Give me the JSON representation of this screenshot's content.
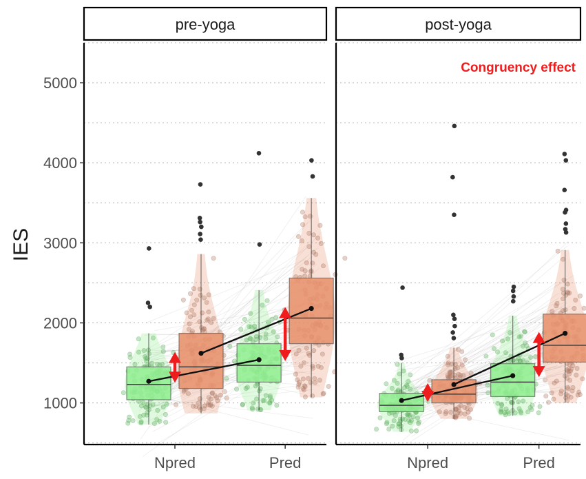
{
  "chart_data": {
    "type": "box",
    "ylabel": "IES",
    "xlabel": "",
    "ylim": [
      480,
      5500
    ],
    "yticks": [
      1000,
      2000,
      3000,
      4000,
      5000
    ],
    "grid": "dotted-horizontal",
    "categories": [
      "Npred",
      "Pred"
    ],
    "conditions": [
      "congruent",
      "incongruent"
    ],
    "colors": {
      "congruent": "#90ee90",
      "congruent_points": "#5fae5f",
      "incongruent": "#e8916b",
      "incongruent_points": "#b07a68",
      "outlier": "#333333",
      "mean_line": "#111111",
      "effect_arrow": "#ee1c1c"
    },
    "annotation": "Congruency effect",
    "panels": [
      {
        "name": "pre-yoga",
        "boxes": [
          {
            "category": "Npred",
            "condition": "congruent",
            "min": 730,
            "q1": 1040,
            "median": 1230,
            "q3": 1450,
            "max": 1870,
            "mean": 1270,
            "outliers": [
              2930,
              2250,
              2200
            ]
          },
          {
            "category": "Npred",
            "condition": "incongruent",
            "min": 870,
            "q1": 1180,
            "median": 1450,
            "q3": 1870,
            "max": 2860,
            "mean": 1620,
            "outliers": [
              3730,
              3310,
              3260,
              3200,
              3110,
              3040
            ]
          },
          {
            "category": "Pred",
            "condition": "congruent",
            "min": 910,
            "q1": 1260,
            "median": 1470,
            "q3": 1740,
            "max": 2410,
            "mean": 1540,
            "outliers": [
              4120,
              2980
            ]
          },
          {
            "category": "Pred",
            "condition": "incongruent",
            "min": 1070,
            "q1": 1740,
            "median": 2060,
            "q3": 2560,
            "max": 3560,
            "mean": 2180,
            "outliers": [
              4030,
              3830
            ]
          }
        ]
      },
      {
        "name": "post-yoga",
        "boxes": [
          {
            "category": "Npred",
            "condition": "congruent",
            "min": 640,
            "q1": 890,
            "median": 970,
            "q3": 1120,
            "max": 1500,
            "mean": 1030,
            "outliers": [
              2440,
              1600,
              1560
            ]
          },
          {
            "category": "Npred",
            "condition": "incongruent",
            "min": 800,
            "q1": 1000,
            "median": 1110,
            "q3": 1290,
            "max": 1690,
            "mean": 1230,
            "outliers": [
              4460,
              3820,
              3350,
              2100,
              2050,
              1960,
              1880,
              1810
            ]
          },
          {
            "category": "Pred",
            "condition": "congruent",
            "min": 840,
            "q1": 1080,
            "median": 1260,
            "q3": 1490,
            "max": 2090,
            "mean": 1340,
            "outliers": [
              2450,
              2400,
              2330,
              2270
            ]
          },
          {
            "category": "Pred",
            "condition": "incongruent",
            "min": 1000,
            "q1": 1510,
            "median": 1720,
            "q3": 2110,
            "max": 2910,
            "mean": 1870,
            "outliers": [
              4110,
              4030,
              3660,
              3410,
              3380,
              3240,
              3170,
              3130
            ]
          }
        ]
      }
    ]
  }
}
